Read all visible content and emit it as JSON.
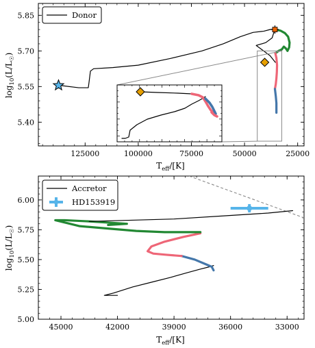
{
  "chart_data": [
    {
      "type": "line",
      "panel": "top",
      "xlabel_main": "T",
      "xlabel_sub": "eff",
      "xlabel_unit": "/[K]",
      "ylabel_main": "log",
      "ylabel_sub": "10",
      "ylabel_mid": "(L/L",
      "ylabel_sun": "☉",
      "ylabel_end": ")",
      "xlim": [
        147000,
        22000
      ],
      "ylim": [
        5.3,
        5.9
      ],
      "x_ticks": [
        125000,
        100000,
        75000,
        50000,
        25000
      ],
      "y_ticks": [
        5.4,
        5.55,
        5.7,
        5.85
      ],
      "y_tick_labels": [
        "5.40",
        "5.55",
        "5.70",
        "5.85"
      ],
      "legend": {
        "position": "top-left",
        "entries": [
          "Donor"
        ]
      },
      "series": [
        {
          "name": "Donor",
          "color": "#000000",
          "x": [
            137000,
            128000,
            123500,
            123200,
            122500,
            121000,
            112000,
            100000,
            85000,
            70000,
            60000,
            52000,
            46000,
            41000,
            38000,
            36000,
            35800,
            37000,
            40000,
            44500,
            41000,
            38000,
            35500
          ],
          "y": [
            5.555,
            5.545,
            5.545,
            5.565,
            5.615,
            5.625,
            5.63,
            5.64,
            5.668,
            5.7,
            5.73,
            5.76,
            5.778,
            5.783,
            5.79,
            5.792,
            5.79,
            5.755,
            5.735,
            5.723,
            5.7,
            5.68,
            5.652
          ]
        },
        {
          "name": "",
          "color": "#228833",
          "x": [
            35500,
            33000,
            31000,
            29500,
            28800,
            29000,
            29800,
            30500,
            31500,
            32500,
            34000,
            35500
          ],
          "y": [
            5.79,
            5.785,
            5.775,
            5.76,
            5.735,
            5.715,
            5.7,
            5.71,
            5.718,
            5.706,
            5.7,
            5.69
          ]
        },
        {
          "name": "",
          "color": "#EE6677",
          "x": [
            35500,
            35000,
            34700,
            34800,
            35000,
            35300,
            35700
          ],
          "y": [
            5.69,
            5.67,
            5.64,
            5.61,
            5.585,
            5.56,
            5.54
          ]
        },
        {
          "name": "",
          "color": "#4477AA",
          "x": [
            35700,
            35300,
            35000,
            35000
          ],
          "y": [
            5.54,
            5.51,
            5.48,
            5.44
          ]
        }
      ],
      "markers": [
        {
          "shape": "star",
          "x": 137500,
          "y": 5.555,
          "color": "#56B4E9"
        },
        {
          "shape": "diamond",
          "x": 40500,
          "y": 5.652,
          "color": "#E69F00"
        },
        {
          "shape": "plus",
          "x": 35700,
          "y": 5.79,
          "color": "#E66100"
        },
        {
          "shape": "square",
          "x": 35700,
          "y": 5.79,
          "color": "#E66100"
        }
      ],
      "inset": {
        "source_xlim": [
          44000,
          32500
        ],
        "source_ylim": [
          5.32,
          5.7
        ]
      }
    },
    {
      "type": "line",
      "panel": "bottom",
      "xlabel_main": "T",
      "xlabel_sub": "eff",
      "xlabel_unit": "/[K]",
      "ylabel_main": "log",
      "ylabel_sub": "10",
      "ylabel_mid": "(L/L",
      "ylabel_sun": "☉",
      "ylabel_end": ")",
      "xlim": [
        46200,
        32100
      ],
      "ylim": [
        5.0,
        6.2
      ],
      "x_ticks": [
        45000,
        42000,
        39000,
        36000,
        33000
      ],
      "y_ticks": [
        5.0,
        5.25,
        5.5,
        5.75,
        6.0
      ],
      "y_tick_labels": [
        "5.00",
        "5.25",
        "5.50",
        "5.75",
        "6.00"
      ],
      "legend": {
        "position": "top-left",
        "entries": [
          "Accretor",
          "HD153919"
        ]
      },
      "series": [
        {
          "name": "Accretor",
          "color": "#000000",
          "x": [
            42000,
            42700,
            42200,
            41200,
            40200,
            39200,
            38300,
            37600,
            37100,
            36900
          ],
          "y": [
            5.2,
            5.2,
            5.22,
            5.27,
            5.31,
            5.35,
            5.39,
            5.42,
            5.44,
            5.45
          ]
        },
        {
          "name": "",
          "color": "#4477AA",
          "x": [
            36900,
            37000,
            37300,
            37900,
            38600
          ],
          "y": [
            5.41,
            5.44,
            5.46,
            5.5,
            5.53
          ]
        },
        {
          "name": "",
          "color": "#EE6677",
          "x": [
            38600,
            39400,
            40100,
            40400,
            40200,
            39500,
            38500,
            37900,
            37600
          ],
          "y": [
            5.53,
            5.54,
            5.55,
            5.57,
            5.61,
            5.65,
            5.69,
            5.71,
            5.72
          ]
        },
        {
          "name": "",
          "color": "#228833",
          "x": [
            37600,
            38200,
            39500,
            41000,
            42500,
            44000,
            45300,
            44800,
            43500,
            41500,
            42500
          ],
          "y": [
            5.73,
            5.73,
            5.73,
            5.74,
            5.76,
            5.78,
            5.83,
            5.83,
            5.82,
            5.8,
            5.79
          ]
        },
        {
          "name": "",
          "color": "#000000",
          "x": [
            43500,
            39000,
            36000,
            34000,
            32700
          ],
          "y": [
            5.82,
            5.84,
            5.87,
            5.89,
            5.91
          ]
        }
      ],
      "reference_line": {
        "color": "#888888",
        "x": [
          38200,
          32100
        ],
        "y": [
          6.2,
          5.85
        ]
      },
      "observation": {
        "name": "HD153919",
        "x": 35000,
        "y": 5.93,
        "x_err": 1000,
        "y_err": 0.035,
        "color": "#56B4E9"
      }
    }
  ]
}
